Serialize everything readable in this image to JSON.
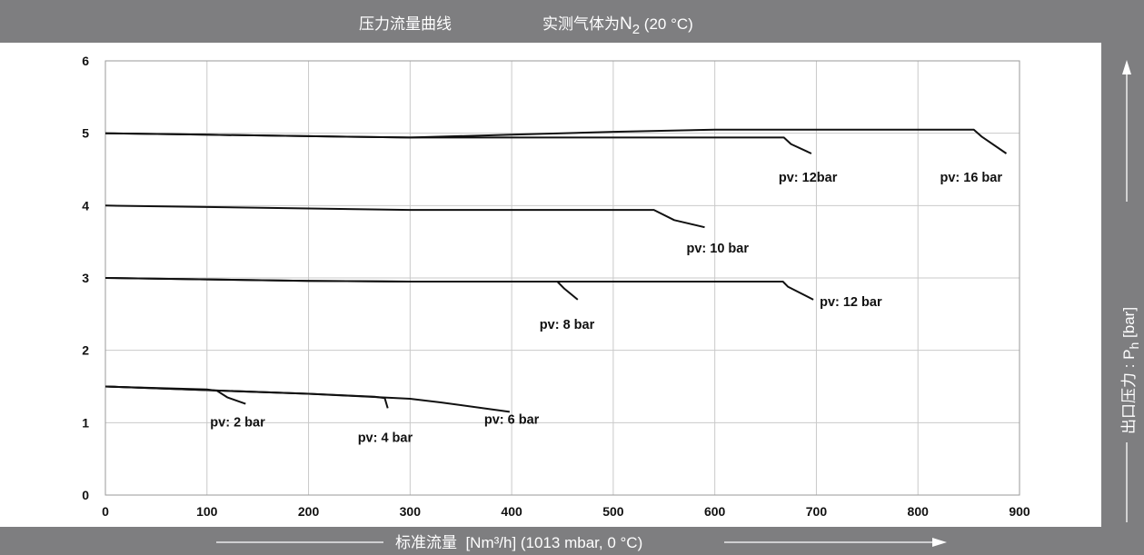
{
  "header": {
    "title": "压力流量曲线",
    "subtitle_prefix": "实测气体为",
    "gas": "N",
    "gas_subscript": "2",
    "subtitle_suffix": " (20 °C)"
  },
  "colors": {
    "band": "#7e7e80",
    "grid": "#c9c9c9",
    "curve": "#111111",
    "band_text": "#ffffff"
  },
  "chart_data": {
    "type": "line",
    "title": "压力流量曲线",
    "subtitle": "实测气体为N2 (20 °C)",
    "xlabel": "标准流量  [Nm³/h] (1013 mbar, 0 °C)",
    "ylabel": "出口压力 : Ph [bar]",
    "xlim": [
      0,
      900
    ],
    "ylim": [
      0,
      6
    ],
    "x_ticks": [
      "0",
      "100",
      "200",
      "300",
      "400",
      "500",
      "600",
      "700",
      "800",
      "900"
    ],
    "y_ticks": [
      "0",
      "1",
      "2",
      "3",
      "4",
      "5",
      "6"
    ],
    "grid": true,
    "legend": "none",
    "series": [
      {
        "name": "pv: 2 bar",
        "points": [
          [
            0,
            1.5
          ],
          [
            100,
            1.46
          ],
          [
            110,
            1.44
          ],
          [
            120,
            1.35
          ],
          [
            138,
            1.26
          ]
        ]
      },
      {
        "name": "pv: 4 bar",
        "points": [
          [
            0,
            1.5
          ],
          [
            100,
            1.45
          ],
          [
            200,
            1.4
          ],
          [
            265,
            1.36
          ],
          [
            275,
            1.34
          ],
          [
            278,
            1.2
          ]
        ]
      },
      {
        "name": "pv: 6 bar",
        "points": [
          [
            0,
            1.5
          ],
          [
            100,
            1.45
          ],
          [
            200,
            1.4
          ],
          [
            300,
            1.33
          ],
          [
            330,
            1.28
          ],
          [
            398,
            1.15
          ]
        ]
      },
      {
        "name": "pv: 8 bar",
        "points": [
          [
            0,
            3.0
          ],
          [
            100,
            2.98
          ],
          [
            200,
            2.96
          ],
          [
            300,
            2.95
          ],
          [
            445,
            2.95
          ],
          [
            452,
            2.85
          ],
          [
            465,
            2.7
          ]
        ]
      },
      {
        "name": "pv: 12 bar",
        "points": [
          [
            0,
            3.0
          ],
          [
            100,
            2.98
          ],
          [
            200,
            2.96
          ],
          [
            300,
            2.95
          ],
          [
            667,
            2.95
          ],
          [
            672,
            2.88
          ],
          [
            697,
            2.7
          ]
        ]
      },
      {
        "name": "pv: 10 bar",
        "points": [
          [
            0,
            4.0
          ],
          [
            100,
            3.98
          ],
          [
            200,
            3.96
          ],
          [
            300,
            3.94
          ],
          [
            540,
            3.94
          ],
          [
            560,
            3.8
          ],
          [
            590,
            3.7
          ]
        ]
      },
      {
        "name": "pv: 12bar",
        "points": [
          [
            0,
            5.0
          ],
          [
            100,
            4.98
          ],
          [
            200,
            4.96
          ],
          [
            300,
            4.94
          ],
          [
            668,
            4.94
          ],
          [
            675,
            4.85
          ],
          [
            695,
            4.72
          ]
        ]
      },
      {
        "name": "pv: 16 bar",
        "points": [
          [
            0,
            5.0
          ],
          [
            100,
            4.98
          ],
          [
            200,
            4.96
          ],
          [
            300,
            4.94
          ],
          [
            400,
            4.98
          ],
          [
            500,
            5.02
          ],
          [
            600,
            5.05
          ],
          [
            855,
            5.05
          ],
          [
            863,
            4.95
          ],
          [
            887,
            4.72
          ]
        ]
      }
    ],
    "annotations": [
      "pv: 2 bar",
      "pv: 4 bar",
      "pv: 6 bar",
      "pv: 8 bar",
      "pv: 12 bar",
      "pv: 10 bar",
      "pv: 12bar",
      "pv: 16 bar"
    ]
  }
}
